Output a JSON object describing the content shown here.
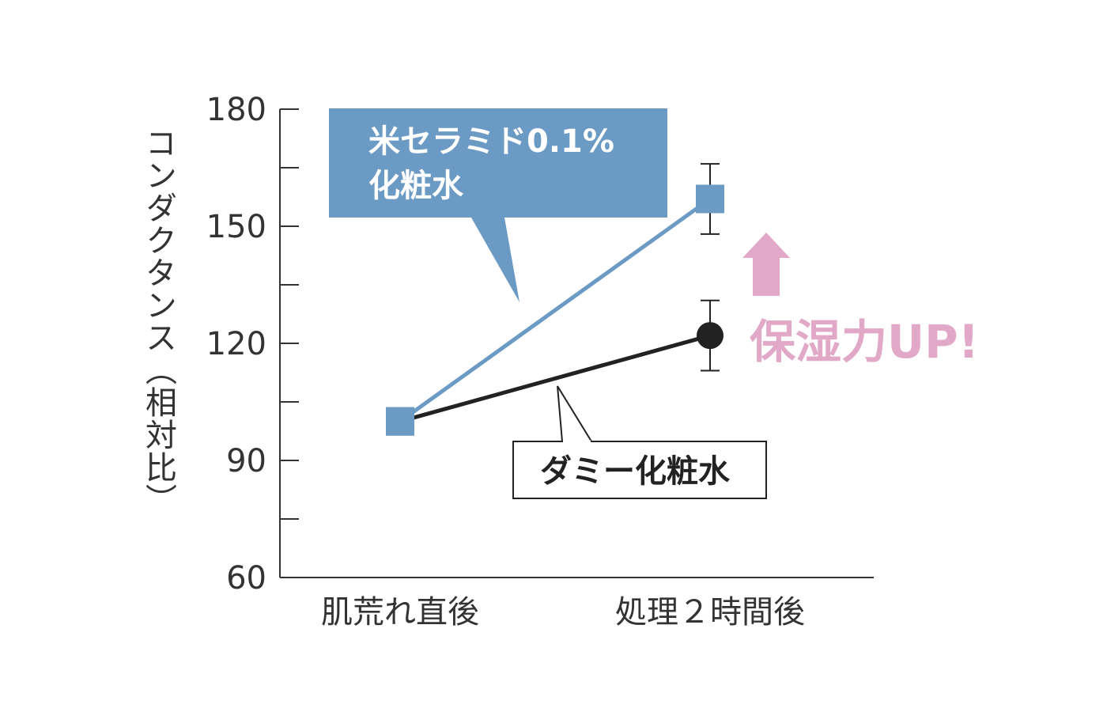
{
  "chart_data": {
    "type": "line",
    "categories": [
      "肌荒れ直後",
      "処理２時間後"
    ],
    "ylabel": "コンダクタンス（相対比）",
    "ylim": [
      60,
      180
    ],
    "yticks": [
      60,
      90,
      120,
      150,
      180
    ],
    "series": [
      {
        "name": "米セラミド0.1%化粧水",
        "values": [
          100,
          157
        ],
        "error": [
          null,
          9
        ],
        "marker": "square",
        "color": "#6b9ac4"
      },
      {
        "name": "ダミー化粧水",
        "values": [
          100,
          122
        ],
        "error": [
          null,
          9
        ],
        "marker": "circle",
        "color": "#222222"
      }
    ],
    "annotations": {
      "blue_callout": [
        "米セラミド0.1%",
        "化粧水"
      ],
      "dark_callout": "ダミー化粧水",
      "up_text": "保湿力UP!"
    }
  },
  "colors": {
    "blue": "#6b9ac4",
    "dark": "#222222",
    "pink": "#e2a8c8",
    "axis": "#333333"
  }
}
